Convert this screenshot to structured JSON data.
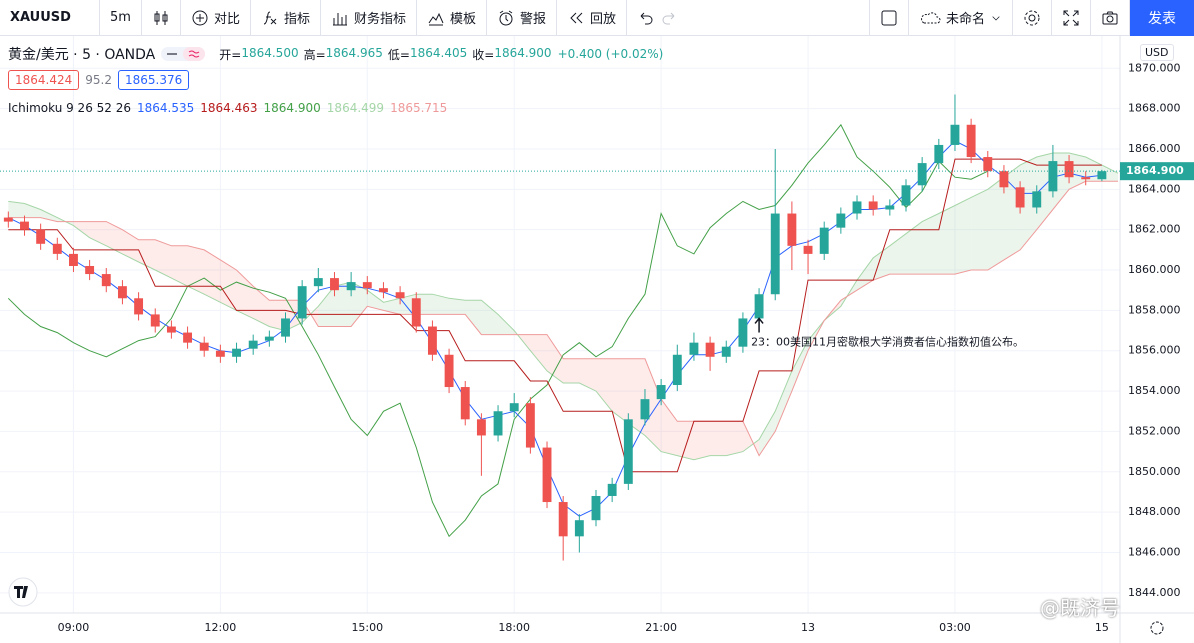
{
  "toolbar": {
    "symbol": "XAUUSD",
    "interval": "5m",
    "items": [
      "对比",
      "指标",
      "财务指标",
      "模板",
      "警报",
      "回放"
    ],
    "layout": "未命名",
    "publish": "发表"
  },
  "legend": {
    "instrument": "黄金/美元 · 5 · OANDA",
    "ohlc": [
      {
        "label": "开=",
        "value": "1864.500"
      },
      {
        "label": "高=",
        "value": "1864.965"
      },
      {
        "label": "低=",
        "value": "1864.405"
      },
      {
        "label": "收=",
        "value": "1864.900"
      }
    ],
    "change": "+0.400 (+0.02%)",
    "bid": "1864.424",
    "spread": "95.2",
    "ask": "1865.376",
    "indicator": "Ichimoku 9 26 52 26",
    "indicator_values": [
      "1864.535",
      "1864.463",
      "1864.900",
      "1864.499",
      "1865.715"
    ]
  },
  "currency": "USD",
  "watermark": "@既济号",
  "chart_data": {
    "type": "candlestick",
    "x": [
      7.67,
      8,
      8.33,
      8.67,
      9,
      9.33,
      9.67,
      10,
      10.33,
      10.67,
      11,
      11.33,
      11.67,
      12,
      12.33,
      12.67,
      13,
      13.33,
      13.67,
      14,
      14.33,
      14.67,
      15,
      15.33,
      15.67,
      16,
      16.33,
      16.67,
      17,
      17.33,
      17.67,
      18,
      18.33,
      18.67,
      19,
      19.33,
      19.67,
      20,
      20.33,
      20.67,
      21,
      21.33,
      21.67,
      22,
      22.33,
      22.67,
      23,
      23.33,
      23.67,
      24,
      24.33,
      24.67,
      25,
      25.33,
      25.67,
      26,
      26.33,
      26.67,
      27,
      27.33,
      27.67,
      28,
      28.33,
      28.67,
      29,
      29.33,
      29.67,
      30,
      30.33
    ],
    "candles": [
      [
        1862.6,
        1862.9,
        1862.1,
        1862.4
      ],
      [
        1862.4,
        1862.7,
        1861.7,
        1862.0
      ],
      [
        1862.0,
        1862.3,
        1861.0,
        1861.3
      ],
      [
        1861.3,
        1861.6,
        1860.5,
        1860.8
      ],
      [
        1860.8,
        1861.1,
        1859.9,
        1860.2
      ],
      [
        1860.2,
        1860.5,
        1859.5,
        1859.8
      ],
      [
        1859.8,
        1860.1,
        1858.9,
        1859.2
      ],
      [
        1859.2,
        1859.5,
        1858.3,
        1858.6
      ],
      [
        1858.6,
        1858.9,
        1857.5,
        1857.8
      ],
      [
        1857.8,
        1858.1,
        1856.9,
        1857.2
      ],
      [
        1857.2,
        1857.5,
        1856.6,
        1856.9
      ],
      [
        1856.9,
        1857.2,
        1856.1,
        1856.4
      ],
      [
        1856.4,
        1856.7,
        1855.7,
        1856.0
      ],
      [
        1856.0,
        1856.3,
        1855.4,
        1855.7
      ],
      [
        1855.7,
        1856.4,
        1855.4,
        1856.1
      ],
      [
        1856.1,
        1856.8,
        1855.8,
        1856.5
      ],
      [
        1856.5,
        1857.0,
        1856.2,
        1856.7
      ],
      [
        1856.7,
        1857.9,
        1856.4,
        1857.6
      ],
      [
        1857.6,
        1859.5,
        1857.3,
        1859.2
      ],
      [
        1859.2,
        1860.1,
        1858.9,
        1859.6
      ],
      [
        1859.6,
        1859.9,
        1858.7,
        1859.0
      ],
      [
        1859.0,
        1859.9,
        1858.7,
        1859.4
      ],
      [
        1859.4,
        1859.7,
        1858.8,
        1859.1
      ],
      [
        1859.1,
        1859.4,
        1858.6,
        1858.9
      ],
      [
        1858.9,
        1859.2,
        1858.3,
        1858.6
      ],
      [
        1858.6,
        1858.9,
        1856.9,
        1857.2
      ],
      [
        1857.2,
        1857.5,
        1855.5,
        1855.8
      ],
      [
        1855.8,
        1856.1,
        1853.9,
        1854.2
      ],
      [
        1854.2,
        1854.5,
        1852.3,
        1852.6
      ],
      [
        1852.6,
        1852.9,
        1849.8,
        1851.8
      ],
      [
        1851.8,
        1853.3,
        1851.5,
        1853.0
      ],
      [
        1853.0,
        1853.9,
        1852.7,
        1853.4
      ],
      [
        1853.4,
        1853.7,
        1850.9,
        1851.2
      ],
      [
        1851.2,
        1851.5,
        1848.2,
        1848.5
      ],
      [
        1848.5,
        1848.8,
        1845.6,
        1846.8
      ],
      [
        1846.8,
        1847.9,
        1846.0,
        1847.6
      ],
      [
        1847.6,
        1849.1,
        1847.3,
        1848.8
      ],
      [
        1848.8,
        1849.7,
        1848.5,
        1849.4
      ],
      [
        1849.4,
        1852.9,
        1849.1,
        1852.6
      ],
      [
        1852.6,
        1854.1,
        1852.3,
        1853.6
      ],
      [
        1853.6,
        1854.6,
        1853.3,
        1854.3
      ],
      [
        1854.3,
        1856.3,
        1854.0,
        1855.8
      ],
      [
        1855.8,
        1856.9,
        1855.5,
        1856.4
      ],
      [
        1856.4,
        1856.7,
        1855.0,
        1855.7
      ],
      [
        1855.7,
        1856.5,
        1855.4,
        1856.2
      ],
      [
        1856.2,
        1857.9,
        1855.9,
        1857.6
      ],
      [
        1857.6,
        1859.1,
        1857.3,
        1858.8
      ],
      [
        1858.8,
        1866.0,
        1858.5,
        1862.8
      ],
      [
        1862.8,
        1863.4,
        1860.0,
        1861.2
      ],
      [
        1861.2,
        1861.5,
        1859.8,
        1860.8
      ],
      [
        1860.8,
        1862.4,
        1860.5,
        1862.1
      ],
      [
        1862.1,
        1863.1,
        1861.8,
        1862.8
      ],
      [
        1862.8,
        1863.7,
        1862.5,
        1863.4
      ],
      [
        1863.4,
        1863.7,
        1862.7,
        1863.0
      ],
      [
        1863.0,
        1863.5,
        1862.7,
        1863.2
      ],
      [
        1863.2,
        1864.5,
        1862.9,
        1864.2
      ],
      [
        1864.2,
        1865.6,
        1863.9,
        1865.3
      ],
      [
        1865.3,
        1866.5,
        1865.0,
        1866.2
      ],
      [
        1866.2,
        1868.7,
        1865.9,
        1867.2
      ],
      [
        1867.2,
        1867.5,
        1865.3,
        1865.6
      ],
      [
        1865.6,
        1865.9,
        1864.6,
        1864.9
      ],
      [
        1864.9,
        1865.2,
        1863.8,
        1864.1
      ],
      [
        1864.1,
        1864.4,
        1862.8,
        1863.1
      ],
      [
        1863.1,
        1864.2,
        1862.8,
        1863.9
      ],
      [
        1863.9,
        1866.2,
        1863.6,
        1865.4
      ],
      [
        1865.4,
        1865.7,
        1864.3,
        1864.6
      ],
      [
        1864.6,
        1864.9,
        1864.2,
        1864.5
      ],
      [
        1864.5,
        1864.965,
        1864.405,
        1864.9
      ],
      null
    ],
    "up_color": "#26a69a",
    "down_color": "#ef5350",
    "series": [
      {
        "color": "#2962ff",
        "values": [
          1862.6,
          1862.2,
          1861.7,
          1861.1,
          1860.5,
          1860.0,
          1859.5,
          1858.9,
          1858.2,
          1857.6,
          1857.1,
          1856.7,
          1856.3,
          1856.0,
          1855.9,
          1856.2,
          1856.5,
          1857.1,
          1858.2,
          1859.0,
          1859.2,
          1859.2,
          1859.1,
          1858.9,
          1858.6,
          1857.6,
          1856.4,
          1855.0,
          1853.6,
          1852.6,
          1852.8,
          1853.0,
          1852.2,
          1850.2,
          1848.4,
          1847.8,
          1848.2,
          1849.0,
          1850.8,
          1852.4,
          1853.6,
          1854.8,
          1855.8,
          1855.8,
          1856.0,
          1857.0,
          1858.2,
          1860.6,
          1861.2,
          1861.4,
          1861.8,
          1862.4,
          1863.0,
          1863.0,
          1863.1,
          1863.8,
          1864.6,
          1865.6,
          1866.4,
          1866.0,
          1865.2,
          1864.6,
          1863.8,
          1863.8,
          1864.6,
          1864.8,
          1864.6,
          1864.7,
          null
        ]
      },
      {
        "color": "#b71c1c",
        "values": [
          1862.0,
          1862.0,
          1862.0,
          1862.0,
          1861.0,
          1861.0,
          1861.0,
          1861.0,
          1861.0,
          1859.2,
          1859.2,
          1859.2,
          1859.2,
          1859.2,
          1858.0,
          1858.0,
          1858.0,
          1858.0,
          1857.8,
          1857.8,
          1857.8,
          1857.8,
          1857.8,
          1857.8,
          1857.8,
          1857.0,
          1857.0,
          1857.0,
          1855.5,
          1855.5,
          1855.5,
          1855.5,
          1854.5,
          1854.5,
          1853.0,
          1853.0,
          1853.0,
          1853.0,
          1850.0,
          1850.0,
          1850.0,
          1850.0,
          1852.5,
          1852.5,
          1852.5,
          1852.5,
          1855.0,
          1855.0,
          1855.0,
          1859.5,
          1859.5,
          1859.5,
          1859.5,
          1859.5,
          1862.0,
          1862.0,
          1862.0,
          1862.0,
          1865.5,
          1865.5,
          1865.5,
          1865.5,
          1865.5,
          1865.2,
          1865.2,
          1865.2,
          1865.2,
          1865.2,
          null
        ]
      },
      {
        "color": "#43a047",
        "values": [
          1858.6,
          1857.8,
          1857.2,
          1856.9,
          1856.4,
          1856.0,
          1855.7,
          1856.1,
          1856.5,
          1856.7,
          1857.6,
          1859.2,
          1859.6,
          1859.0,
          1859.4,
          1859.1,
          1858.9,
          1858.6,
          1857.2,
          1855.8,
          1854.2,
          1852.6,
          1851.8,
          1853.0,
          1853.4,
          1851.2,
          1848.5,
          1846.8,
          1847.6,
          1848.8,
          1849.4,
          1852.6,
          1853.6,
          1854.3,
          1855.8,
          1856.4,
          1855.7,
          1856.2,
          1857.6,
          1858.8,
          1862.8,
          1861.2,
          1860.8,
          1862.1,
          1862.8,
          1863.4,
          1863.0,
          1863.2,
          1864.2,
          1865.3,
          1866.2,
          1867.2,
          1865.6,
          1864.9,
          1864.1,
          1863.1,
          1863.9,
          1865.4,
          1864.6,
          1864.5,
          1864.9,
          null,
          null,
          null,
          null,
          null,
          null,
          null,
          null
        ]
      },
      {
        "color": "#a5d6a7",
        "values": [
          1863.4,
          1863.3,
          1863.0,
          1862.6,
          1862.2,
          1861.6,
          1861.2,
          1860.8,
          1860.4,
          1860.0,
          1859.6,
          1859.2,
          1858.8,
          1858.4,
          1858.0,
          1857.6,
          1857.2,
          1857.0,
          1857.4,
          1858.2,
          1859.2,
          1859.4,
          1859.0,
          1858.4,
          1858.6,
          1858.8,
          1858.8,
          1858.6,
          1858.5,
          1858.5,
          1857.8,
          1857.0,
          1856.0,
          1855.0,
          1854.4,
          1854.4,
          1854.0,
          1853.0,
          1852.4,
          1851.8,
          1851.0,
          1850.8,
          1850.6,
          1850.8,
          1850.8,
          1851.0,
          1851.6,
          1853.0,
          1855.0,
          1856.5,
          1857.5,
          1858.2,
          1859.5,
          1860.6,
          1861.2,
          1861.8,
          1862.4,
          1862.8,
          1863.2,
          1863.6,
          1864.0,
          1864.6,
          1865.2,
          1865.6,
          1865.8,
          1865.8,
          1865.6,
          1865.2,
          1864.8
        ]
      },
      {
        "color": "#ef9a9a",
        "values": [
          1862.6,
          1862.6,
          1862.6,
          1862.4,
          1862.4,
          1862.4,
          1862.4,
          1862.0,
          1861.5,
          1861.5,
          1861.2,
          1861.2,
          1861.0,
          1860.5,
          1860.0,
          1859.2,
          1858.5,
          1858.5,
          1858.5,
          1857.2,
          1857.2,
          1857.2,
          1858.2,
          1858.0,
          1857.8,
          1857.8,
          1857.8,
          1857.8,
          1857.8,
          1856.8,
          1856.8,
          1856.8,
          1856.8,
          1856.8,
          1855.6,
          1855.6,
          1855.6,
          1855.6,
          1855.6,
          1855.6,
          1853.6,
          1852.5,
          1852.5,
          1852.5,
          1852.5,
          1852.5,
          1850.8,
          1852.0,
          1854.0,
          1856.0,
          1857.5,
          1858.5,
          1859.0,
          1859.5,
          1859.8,
          1859.8,
          1859.8,
          1859.8,
          1859.8,
          1860.0,
          1860.0,
          1860.5,
          1861.0,
          1862.0,
          1863.0,
          1864.0,
          1864.4,
          1864.4,
          1864.4
        ]
      }
    ],
    "cloud_up_color": "#43a047",
    "cloud_down_color": "#f44336",
    "annotations": [
      {
        "text": "23：00美国11月密歇根大学消费者信心指数初值公布。",
        "x": 23,
        "y": 1857.6
      }
    ],
    "last_price_label": "1864.900",
    "xlim": [
      7.5,
      30.37
    ],
    "xticks": [
      {
        "value": 9,
        "label": "09:00"
      },
      {
        "value": 12,
        "label": "12:00"
      },
      {
        "value": 15,
        "label": "15:00"
      },
      {
        "value": 18,
        "label": "18:00"
      },
      {
        "value": 21,
        "label": "21:00"
      },
      {
        "value": 24,
        "label": "13"
      },
      {
        "value": 27,
        "label": "03:00"
      },
      {
        "value": 30,
        "label": "15"
      }
    ],
    "ylim": [
      1843,
      1871.6
    ],
    "yticks": [
      {
        "value": 1844,
        "label": "1844.000"
      },
      {
        "value": 1846,
        "label": "1846.000"
      },
      {
        "value": 1848,
        "label": "1848.000"
      },
      {
        "value": 1850,
        "label": "1850.000"
      },
      {
        "value": 1852,
        "label": "1852.000"
      },
      {
        "value": 1854,
        "label": "1854.000"
      },
      {
        "value": 1856,
        "label": "1856.000"
      },
      {
        "value": 1858,
        "label": "1858.000"
      },
      {
        "value": 1860,
        "label": "1860.000"
      },
      {
        "value": 1862,
        "label": "1862.000"
      },
      {
        "value": 1864,
        "label": "1864.000"
      },
      {
        "value": 1866,
        "label": "1866.000"
      },
      {
        "value": 1868,
        "label": "1868.000"
      },
      {
        "value": 1870,
        "label": "1870.000"
      }
    ],
    "grid": true
  }
}
